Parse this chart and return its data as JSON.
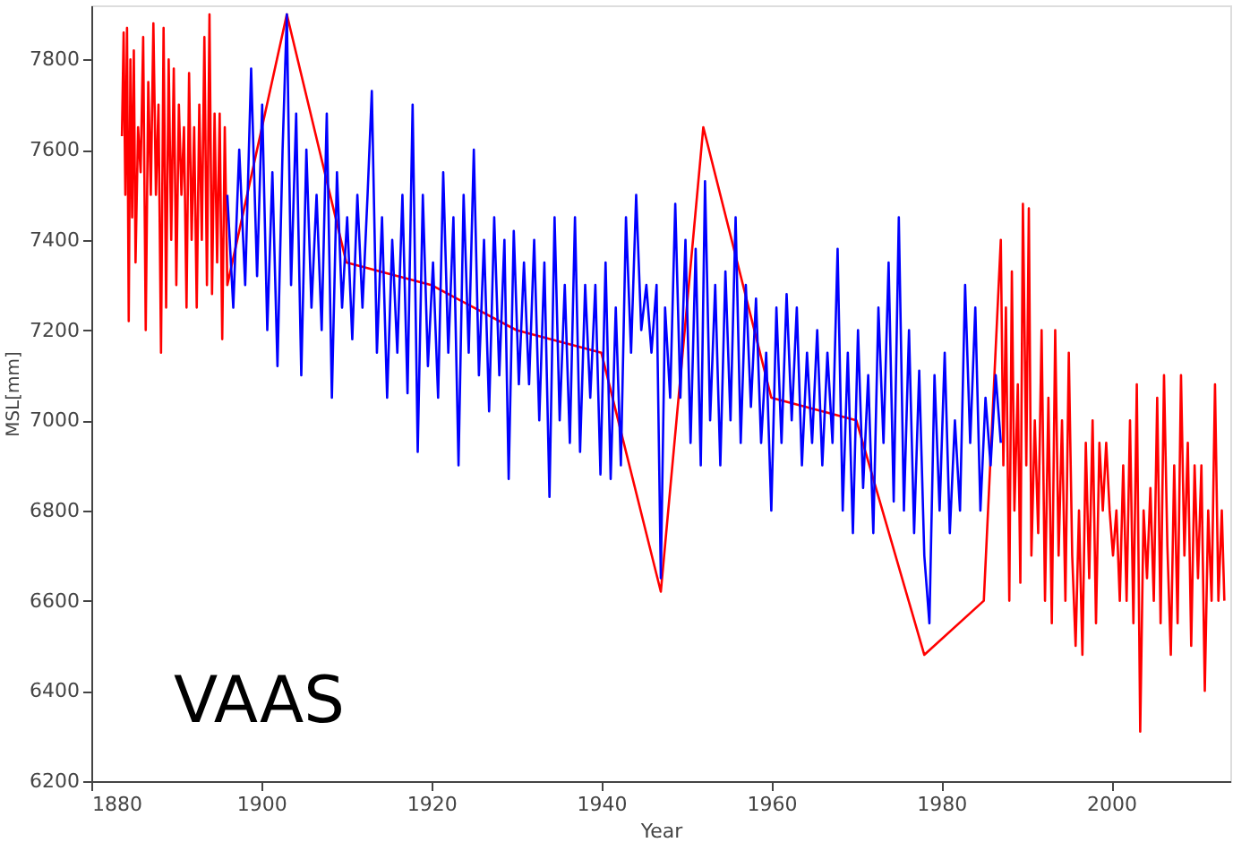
{
  "chart_data": {
    "type": "line",
    "xlabel": "Year",
    "ylabel": "MSL[mm]",
    "xlim": [
      1880,
      2014
    ],
    "ylim": [
      6200,
      7920
    ],
    "xticks": [
      1880,
      1900,
      1920,
      1940,
      1960,
      1980,
      2000
    ],
    "yticks": [
      6200,
      6400,
      6600,
      6800,
      7000,
      7200,
      7400,
      7600,
      7800
    ],
    "grid": false,
    "line_style": "solid",
    "marker": "none",
    "annotations": [
      "VAAS"
    ],
    "series": [
      {
        "color": "#ff0000",
        "x": [
          1883.6,
          1883.8,
          1884.0,
          1884.2,
          1884.4,
          1884.6,
          1884.8,
          1885.0,
          1885.2,
          1885.5,
          1885.8,
          1886.1,
          1886.4,
          1886.7,
          1887.0,
          1887.3,
          1887.6,
          1887.9,
          1888.2,
          1888.5,
          1888.8,
          1889.1,
          1889.4,
          1889.7,
          1890.0,
          1890.3,
          1890.6,
          1890.9,
          1891.2,
          1891.5,
          1891.8,
          1892.1,
          1892.4,
          1892.7,
          1893.0,
          1893.3,
          1893.6,
          1893.9,
          1894.2,
          1894.5,
          1894.8,
          1895.1,
          1895.4,
          1895.7,
          1896.0,
          1903,
          1910,
          1920,
          1930,
          1940,
          1947,
          1952,
          1960,
          1970,
          1978,
          1985,
          1987.0,
          1987.3,
          1987.6,
          1988.0,
          1988.3,
          1988.6,
          1989.0,
          1989.3,
          1989.6,
          1990.0,
          1990.3,
          1990.6,
          1991.0,
          1991.4,
          1991.8,
          1992.2,
          1992.6,
          1993.0,
          1993.4,
          1993.8,
          1994.2,
          1994.6,
          1995.0,
          1995.4,
          1995.8,
          1996.2,
          1996.6,
          1997.0,
          1997.4,
          1997.8,
          1998.2,
          1998.6,
          1999.0,
          1999.4,
          1999.8,
          2000.2,
          2000.6,
          2001.0,
          2001.4,
          2001.8,
          2002.2,
          2002.6,
          2003.0,
          2003.4,
          2003.8,
          2004.2,
          2004.6,
          2005.0,
          2005.4,
          2005.8,
          2006.2,
          2006.6,
          2007.0,
          2007.4,
          2007.8,
          2008.2,
          2008.6,
          2009.0,
          2009.4,
          2009.8,
          2010.2,
          2010.6,
          2011.0,
          2011.4,
          2011.8,
          2012.2,
          2012.6,
          2013.0,
          2013.3
        ],
        "values": [
          7630,
          7860,
          7500,
          7870,
          7220,
          7800,
          7450,
          7820,
          7350,
          7650,
          7550,
          7850,
          7200,
          7750,
          7500,
          7880,
          7500,
          7700,
          7150,
          7870,
          7250,
          7800,
          7400,
          7780,
          7300,
          7700,
          7500,
          7650,
          7250,
          7770,
          7400,
          7650,
          7250,
          7700,
          7400,
          7850,
          7300,
          7900,
          7280,
          7680,
          7350,
          7680,
          7180,
          7650,
          7300,
          7900,
          7350,
          7300,
          7200,
          7150,
          6620,
          7650,
          7050,
          7000,
          6480,
          6600,
          7400,
          6900,
          7250,
          6600,
          7330,
          6800,
          7080,
          6640,
          7480,
          6900,
          7470,
          6700,
          7000,
          6750,
          7200,
          6600,
          7050,
          6550,
          7200,
          6700,
          7000,
          6600,
          7150,
          6700,
          6500,
          6800,
          6480,
          6950,
          6650,
          7000,
          6550,
          6950,
          6800,
          6950,
          6800,
          6700,
          6800,
          6600,
          6900,
          6600,
          7000,
          6550,
          7080,
          6310,
          6800,
          6650,
          6850,
          6600,
          7050,
          6550,
          7100,
          6720,
          6480,
          6900,
          6550,
          7100,
          6700,
          6950,
          6500,
          6900,
          6650,
          6900,
          6400,
          6800,
          6600,
          7080,
          6600,
          6800,
          6600
        ]
      },
      {
        "color": "#0000ff",
        "x": [
          1896.0,
          1896.7,
          1897.4,
          1898.1,
          1898.8,
          1899.5,
          1900.1,
          1900.7,
          1901.3,
          1901.9,
          1902.5,
          1903.0,
          1903.5,
          1904.1,
          1904.7,
          1905.3,
          1905.9,
          1906.5,
          1907.1,
          1907.7,
          1908.3,
          1908.9,
          1909.5,
          1910.1,
          1910.7,
          1911.3,
          1911.9,
          1912.5,
          1913.0,
          1913.6,
          1914.2,
          1914.8,
          1915.4,
          1916.0,
          1916.6,
          1917.2,
          1917.8,
          1918.4,
          1919.0,
          1919.6,
          1920.2,
          1920.8,
          1921.4,
          1922.0,
          1922.6,
          1923.2,
          1923.8,
          1924.4,
          1925.0,
          1925.6,
          1926.2,
          1926.8,
          1927.4,
          1928.0,
          1928.6,
          1929.1,
          1929.7,
          1930.3,
          1930.9,
          1931.5,
          1932.1,
          1932.7,
          1933.3,
          1933.9,
          1934.5,
          1935.1,
          1935.7,
          1936.3,
          1936.9,
          1937.5,
          1938.1,
          1938.7,
          1939.3,
          1939.9,
          1940.5,
          1941.1,
          1941.7,
          1942.3,
          1942.9,
          1943.5,
          1944.1,
          1944.7,
          1945.3,
          1945.9,
          1946.5,
          1947.0,
          1947.5,
          1948.1,
          1948.7,
          1949.3,
          1949.9,
          1950.5,
          1951.1,
          1951.7,
          1952.2,
          1952.8,
          1953.4,
          1954.0,
          1954.6,
          1955.2,
          1955.8,
          1956.4,
          1957.0,
          1957.6,
          1958.2,
          1958.8,
          1959.4,
          1960.0,
          1960.6,
          1961.2,
          1961.8,
          1962.4,
          1963.0,
          1963.6,
          1964.2,
          1964.8,
          1965.4,
          1966.0,
          1966.6,
          1967.2,
          1967.8,
          1968.4,
          1969.0,
          1969.6,
          1970.2,
          1970.8,
          1971.4,
          1972.0,
          1972.6,
          1973.2,
          1973.8,
          1974.4,
          1975.0,
          1975.6,
          1976.2,
          1976.8,
          1977.4,
          1978.0,
          1978.6,
          1979.2,
          1979.8,
          1980.4,
          1981.0,
          1981.6,
          1982.2,
          1982.8,
          1983.4,
          1984.0,
          1984.6,
          1985.2,
          1985.8,
          1986.4,
          1987.0
        ],
        "values": [
          7500,
          7250,
          7600,
          7300,
          7780,
          7320,
          7700,
          7200,
          7550,
          7120,
          7600,
          7900,
          7300,
          7680,
          7100,
          7600,
          7250,
          7500,
          7200,
          7680,
          7050,
          7550,
          7250,
          7450,
          7180,
          7500,
          7250,
          7500,
          7730,
          7150,
          7450,
          7050,
          7400,
          7150,
          7500,
          7060,
          7700,
          6930,
          7500,
          7120,
          7350,
          7050,
          7550,
          7150,
          7450,
          6900,
          7500,
          7150,
          7600,
          7100,
          7400,
          7020,
          7450,
          7100,
          7400,
          6870,
          7420,
          7080,
          7350,
          7080,
          7400,
          7000,
          7350,
          6830,
          7450,
          7000,
          7300,
          6950,
          7450,
          6930,
          7300,
          7050,
          7300,
          6880,
          7350,
          6870,
          7250,
          6900,
          7450,
          7150,
          7500,
          7200,
          7300,
          7150,
          7300,
          6650,
          7250,
          7050,
          7480,
          7050,
          7400,
          6950,
          7380,
          6900,
          7530,
          7000,
          7300,
          6900,
          7330,
          7000,
          7450,
          6950,
          7300,
          7030,
          7270,
          6950,
          7150,
          6800,
          7250,
          6950,
          7280,
          7000,
          7250,
          6900,
          7150,
          6950,
          7200,
          6900,
          7150,
          6950,
          7380,
          6800,
          7150,
          6750,
          7200,
          6850,
          7100,
          6750,
          7250,
          6950,
          7350,
          6820,
          7450,
          6800,
          7200,
          6750,
          7110,
          6700,
          6550,
          7100,
          6800,
          7150,
          6750,
          7000,
          6800,
          7300,
          6950,
          7250,
          6800,
          7050,
          6900,
          7100,
          6950
        ]
      }
    ]
  }
}
